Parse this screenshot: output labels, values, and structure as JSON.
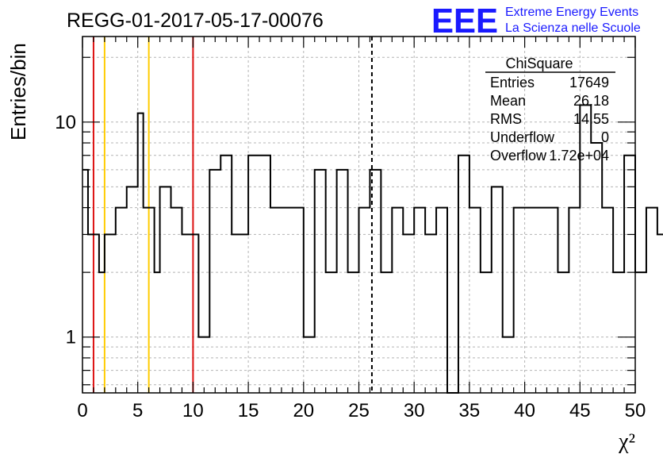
{
  "title": "REGG-01-2017-05-17-00076",
  "logo": {
    "mark": "EEE",
    "line1": "Extreme Energy Events",
    "line2": "La Scienza nelle Scuole",
    "color": "#1a1aff"
  },
  "stats_box": {
    "title": "ChiSquare",
    "rows": [
      {
        "label": "Entries",
        "value": "17649"
      },
      {
        "label": "Mean",
        "value": "26.18"
      },
      {
        "label": "RMS",
        "value": "14.55"
      },
      {
        "label": "Underflow",
        "value": "0"
      },
      {
        "label": "Overflow",
        "value": "1.72e+04"
      }
    ]
  },
  "chart_data": {
    "type": "histogram",
    "xlabel": "χ²",
    "ylabel": "Entries/bin",
    "xlim": [
      0,
      50
    ],
    "ylim": [
      0.55,
      25
    ],
    "yscale": "log",
    "grid": true,
    "bin_width": 0.5,
    "x_ticks": [
      "0",
      "5",
      "10",
      "15",
      "20",
      "25",
      "30",
      "35",
      "40",
      "45",
      "50"
    ],
    "y_ticks": [
      "1",
      "10"
    ],
    "values": [
      6,
      3,
      3,
      2,
      3,
      3,
      4,
      4,
      5,
      5,
      11,
      4,
      4,
      2,
      5,
      5,
      4,
      4,
      3,
      3,
      3,
      1,
      1,
      6,
      6,
      7,
      7,
      3,
      3,
      3,
      7,
      7,
      7,
      7,
      4,
      4,
      4,
      4,
      4,
      4,
      1,
      1,
      6,
      6,
      2,
      2,
      6,
      6,
      2,
      2,
      4,
      4,
      6,
      6,
      2,
      2,
      4,
      4,
      3,
      3,
      4,
      4,
      3,
      3,
      4,
      4,
      0,
      0,
      7,
      7,
      4,
      4,
      2,
      2,
      5,
      5,
      1,
      1,
      4,
      4,
      4,
      4,
      4,
      4,
      4,
      4,
      2,
      2,
      4,
      4,
      12,
      12,
      8,
      8,
      4,
      4,
      2,
      2,
      7,
      7,
      2,
      2,
      4,
      4,
      3,
      3,
      4,
      4,
      2,
      2,
      4,
      4,
      1,
      1,
      6,
      6,
      2,
      2,
      5,
      5,
      4,
      4,
      6,
      6,
      5,
      5,
      4,
      4,
      5,
      5,
      3,
      3,
      4,
      4,
      10,
      10,
      4,
      4,
      5,
      5,
      2,
      2,
      4,
      4,
      3,
      3,
      3,
      3,
      8,
      8,
      3,
      3,
      6,
      6,
      6,
      6,
      4,
      4,
      4,
      4,
      1,
      1,
      5,
      5,
      5,
      5,
      6,
      6,
      6,
      6,
      3,
      3,
      7,
      7,
      7,
      7,
      5,
      5,
      6,
      6,
      6,
      6,
      7,
      7,
      9,
      9,
      6,
      6,
      6,
      6,
      14,
      14,
      6,
      6,
      7,
      7,
      9,
      9,
      9,
      9,
      8,
      8,
      2,
      2,
      2,
      2,
      1,
      1,
      6,
      6
    ],
    "vlines": [
      {
        "x": 1,
        "color": "#dd1111",
        "style": "solid"
      },
      {
        "x": 2,
        "color": "#ffcc00",
        "style": "solid"
      },
      {
        "x": 6,
        "color": "#ffcc00",
        "style": "solid"
      },
      {
        "x": 10,
        "color": "#dd1111",
        "style": "solid"
      },
      {
        "x": 26.18,
        "color": "#000000",
        "style": "dashed"
      }
    ]
  }
}
